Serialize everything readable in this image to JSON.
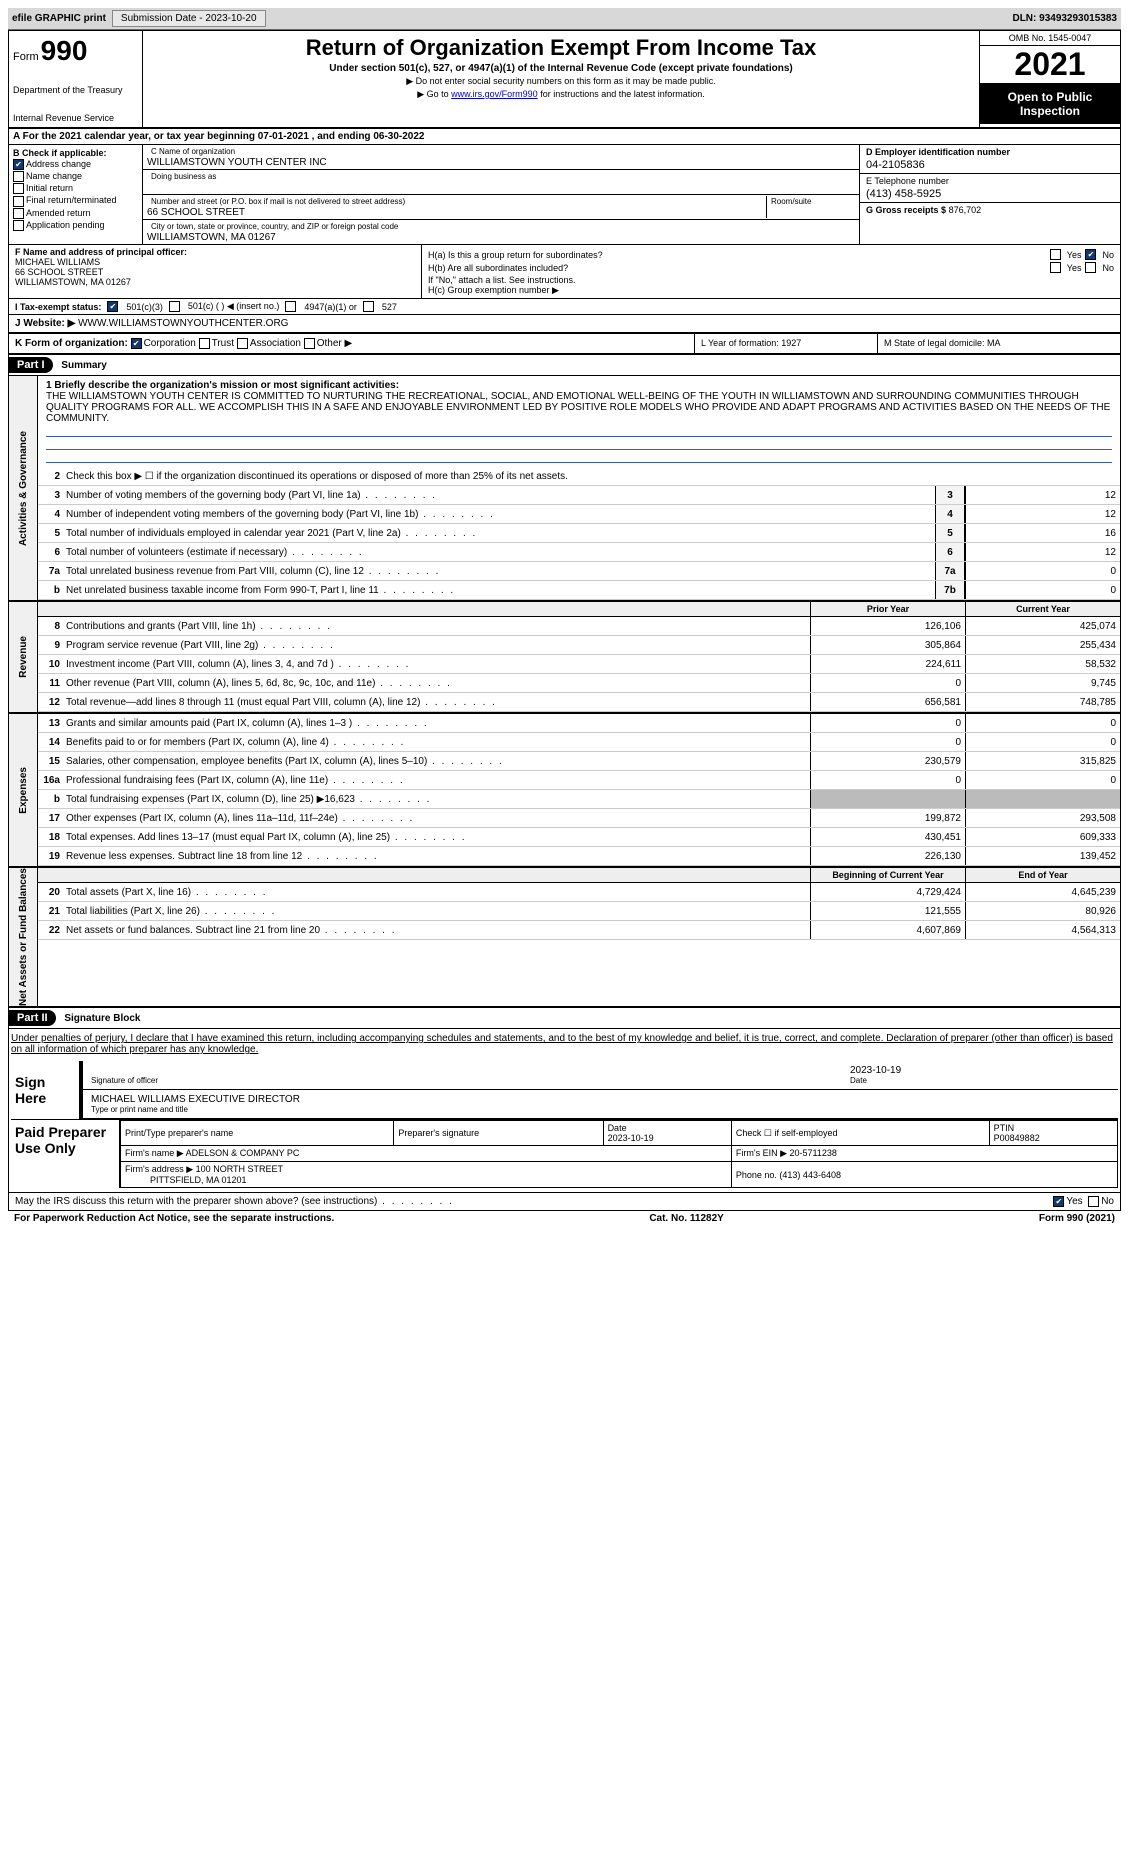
{
  "topbar": {
    "efile": "efile GRAPHIC print",
    "submission_label": "Submission Date - 2023-10-20",
    "dln_label": "DLN: 93493293015383"
  },
  "header": {
    "form_prefix": "Form",
    "form_num": "990",
    "dept": "Department of the Treasury",
    "irs": "Internal Revenue Service",
    "title": "Return of Organization Exempt From Income Tax",
    "sub": "Under section 501(c), 527, or 4947(a)(1) of the Internal Revenue Code (except private foundations)",
    "note1": "▶ Do not enter social security numbers on this form as it may be made public.",
    "note2_pre": "▶ Go to ",
    "note2_link": "www.irs.gov/Form990",
    "note2_post": " for instructions and the latest information.",
    "omb": "OMB No. 1545-0047",
    "year": "2021",
    "otp": "Open to Public Inspection"
  },
  "A": {
    "text": "A For the 2021 calendar year, or tax year beginning 07-01-2021     , and ending 06-30-2022"
  },
  "B": {
    "label": "B Check if applicable:",
    "items": [
      {
        "t": "Address change",
        "on": true
      },
      {
        "t": "Name change",
        "on": false
      },
      {
        "t": "Initial return",
        "on": false
      },
      {
        "t": "Final return/terminated",
        "on": false
      },
      {
        "t": "Amended return",
        "on": false
      },
      {
        "t": "Application pending",
        "on": false
      }
    ]
  },
  "C": {
    "name_cap": "C Name of organization",
    "name": "WILLIAMSTOWN YOUTH CENTER INC",
    "dba_cap": "Doing business as",
    "dba": "",
    "addr_cap": "Number and street (or P.O. box if mail is not delivered to street address)",
    "addr": "66 SCHOOL STREET",
    "room_cap": "Room/suite",
    "city_cap": "City or town, state or province, country, and ZIP or foreign postal code",
    "city": "WILLIAMSTOWN, MA  01267"
  },
  "D": {
    "cap": "D Employer identification number",
    "val": "04-2105836"
  },
  "E": {
    "cap": "E Telephone number",
    "val": "(413) 458-5925"
  },
  "G": {
    "cap": "G Gross receipts $",
    "val": "876,702"
  },
  "F": {
    "cap": "F  Name and address of principal officer:",
    "name": "MICHAEL WILLIAMS",
    "addr1": "66 SCHOOL STREET",
    "addr2": "WILLIAMSTOWN, MA  01267"
  },
  "H": {
    "a": "H(a)  Is this a group return for subordinates?",
    "a_yes": "Yes",
    "a_no": "No",
    "b": "H(b)  Are all subordinates included?",
    "b_note": "If \"No,\" attach a list. See instructions.",
    "c": "H(c)  Group exemption number ▶"
  },
  "I": {
    "label": "I   Tax-exempt status:",
    "o1": "501(c)(3)",
    "o2": "501(c) (   ) ◀ (insert no.)",
    "o3": "4947(a)(1) or",
    "o4": "527"
  },
  "J": {
    "label": "J   Website: ▶",
    "val": "WWW.WILLIAMSTOWNYOUTHCENTER.ORG"
  },
  "K": {
    "label": "K Form of organization:",
    "opts": [
      "Corporation",
      "Trust",
      "Association",
      "Other ▶"
    ],
    "L": "L Year of formation: 1927",
    "M": "M State of legal domicile: MA"
  },
  "partI": {
    "bar": "Part I",
    "title": "Summary"
  },
  "summary": {
    "l1_cap": "1  Briefly describe the organization's mission or most significant activities:",
    "l1_text": "THE WILLIAMSTOWN YOUTH CENTER IS COMMITTED TO NURTURING THE RECREATIONAL, SOCIAL, AND EMOTIONAL WELL-BEING OF THE YOUTH IN WILLIAMSTOWN AND SURROUNDING COMMUNITIES THROUGH QUALITY PROGRAMS FOR ALL. WE ACCOMPLISH THIS IN A SAFE AND ENJOYABLE ENVIRONMENT LED BY POSITIVE ROLE MODELS WHO PROVIDE AND ADAPT PROGRAMS AND ACTIVITIES BASED ON THE NEEDS OF THE COMMUNITY.",
    "l2": "Check this box ▶ ☐  if the organization discontinued its operations or disposed of more than 25% of its net assets.",
    "gov_label": "Activities & Governance",
    "rev_label": "Revenue",
    "exp_label": "Expenses",
    "na_label": "Net Assets or Fund Balances",
    "col_prior": "Prior Year",
    "col_curr": "Current Year",
    "col_begin": "Beginning of Current Year",
    "col_end": "End of Year",
    "lines_gov": [
      {
        "n": "3",
        "d": "Number of voting members of the governing body (Part VI, line 1a)",
        "b": "3",
        "v": "12"
      },
      {
        "n": "4",
        "d": "Number of independent voting members of the governing body (Part VI, line 1b)",
        "b": "4",
        "v": "12"
      },
      {
        "n": "5",
        "d": "Total number of individuals employed in calendar year 2021 (Part V, line 2a)",
        "b": "5",
        "v": "16"
      },
      {
        "n": "6",
        "d": "Total number of volunteers (estimate if necessary)",
        "b": "6",
        "v": "12"
      },
      {
        "n": "7a",
        "d": "Total unrelated business revenue from Part VIII, column (C), line 12",
        "b": "7a",
        "v": "0"
      },
      {
        "n": "b",
        "d": "Net unrelated business taxable income from Form 990-T, Part I, line 11",
        "b": "7b",
        "v": "0"
      }
    ],
    "lines_rev": [
      {
        "n": "8",
        "d": "Contributions and grants (Part VIII, line 1h)",
        "p": "126,106",
        "c": "425,074"
      },
      {
        "n": "9",
        "d": "Program service revenue (Part VIII, line 2g)",
        "p": "305,864",
        "c": "255,434"
      },
      {
        "n": "10",
        "d": "Investment income (Part VIII, column (A), lines 3, 4, and 7d )",
        "p": "224,611",
        "c": "58,532"
      },
      {
        "n": "11",
        "d": "Other revenue (Part VIII, column (A), lines 5, 6d, 8c, 9c, 10c, and 11e)",
        "p": "0",
        "c": "9,745"
      },
      {
        "n": "12",
        "d": "Total revenue—add lines 8 through 11 (must equal Part VIII, column (A), line 12)",
        "p": "656,581",
        "c": "748,785"
      }
    ],
    "lines_exp": [
      {
        "n": "13",
        "d": "Grants and similar amounts paid (Part IX, column (A), lines 1–3 )",
        "p": "0",
        "c": "0"
      },
      {
        "n": "14",
        "d": "Benefits paid to or for members (Part IX, column (A), line 4)",
        "p": "0",
        "c": "0"
      },
      {
        "n": "15",
        "d": "Salaries, other compensation, employee benefits (Part IX, column (A), lines 5–10)",
        "p": "230,579",
        "c": "315,825"
      },
      {
        "n": "16a",
        "d": "Professional fundraising fees (Part IX, column (A), line 11e)",
        "p": "0",
        "c": "0"
      },
      {
        "n": "b",
        "d": "Total fundraising expenses (Part IX, column (D), line 25) ▶16,623",
        "p": "",
        "c": "",
        "gray": true
      },
      {
        "n": "17",
        "d": "Other expenses (Part IX, column (A), lines 11a–11d, 11f–24e)",
        "p": "199,872",
        "c": "293,508"
      },
      {
        "n": "18",
        "d": "Total expenses. Add lines 13–17 (must equal Part IX, column (A), line 25)",
        "p": "430,451",
        "c": "609,333"
      },
      {
        "n": "19",
        "d": "Revenue less expenses. Subtract line 18 from line 12",
        "p": "226,130",
        "c": "139,452"
      }
    ],
    "lines_na": [
      {
        "n": "20",
        "d": "Total assets (Part X, line 16)",
        "p": "4,729,424",
        "c": "4,645,239"
      },
      {
        "n": "21",
        "d": "Total liabilities (Part X, line 26)",
        "p": "121,555",
        "c": "80,926"
      },
      {
        "n": "22",
        "d": "Net assets or fund balances. Subtract line 21 from line 20",
        "p": "4,607,869",
        "c": "4,564,313"
      }
    ]
  },
  "partII": {
    "bar": "Part II",
    "title": "Signature Block"
  },
  "sig": {
    "decl": "Under penalties of perjury, I declare that I have examined this return, including accompanying schedules and statements, and to the best of my knowledge and belief, it is true, correct, and complete. Declaration of preparer (other than officer) is based on all information of which preparer has any knowledge.",
    "here": "Sign Here",
    "sig_cap": "Signature of officer",
    "date1": "2023-10-19",
    "date_cap": "Date",
    "name": "MICHAEL WILLIAMS  EXECUTIVE DIRECTOR",
    "name_cap": "Type or print name and title"
  },
  "prep": {
    "label": "Paid Preparer Use Only",
    "h1": "Print/Type preparer's name",
    "h2": "Preparer's signature",
    "h3": "Date",
    "h4": "Check ☐ if self-employed",
    "h5": "PTIN",
    "date": "2023-10-19",
    "ptin": "P00849882",
    "firm_cap": "Firm's name    ▶",
    "firm": "ADELSON & COMPANY PC",
    "ein_cap": "Firm's EIN ▶",
    "ein": "20-5711238",
    "addr_cap": "Firm's address ▶",
    "addr1": "100 NORTH STREET",
    "addr2": "PITTSFIELD, MA  01201",
    "phone_cap": "Phone no.",
    "phone": "(413) 443-6408"
  },
  "may": {
    "q": "May the IRS discuss this return with the preparer shown above? (see instructions)",
    "yes": "Yes",
    "no": "No"
  },
  "footer": {
    "l": "For Paperwork Reduction Act Notice, see the separate instructions.",
    "m": "Cat. No. 11282Y",
    "r": "Form 990 (2021)"
  }
}
